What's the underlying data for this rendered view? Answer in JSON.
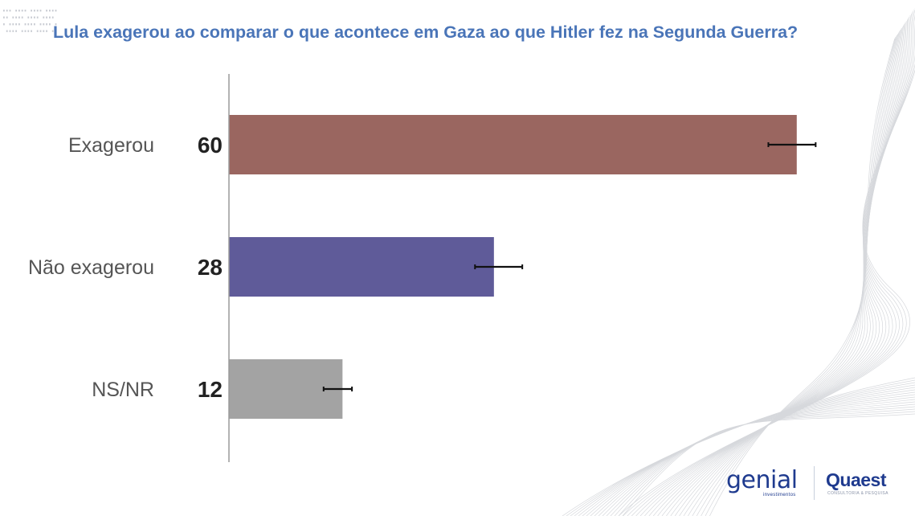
{
  "title": "Lula exagerou ao comparar o que acontece em Gaza ao que Hitler fez na Segunda Guerra?",
  "chart_data": {
    "type": "bar",
    "orientation": "horizontal",
    "title": "Lula exagerou ao comparar o que acontece em Gaza ao que Hitler fez na Segunda Guerra?",
    "categories": [
      "Exagerou",
      "Não exagerou",
      "NS/NR"
    ],
    "values": [
      60,
      28,
      12
    ],
    "error_bars": [
      [
        57,
        62
      ],
      [
        26,
        31
      ],
      [
        10,
        13
      ]
    ],
    "colors": [
      "#9a6660",
      "#5f5b99",
      "#a3a3a3"
    ],
    "xlim": [
      0,
      72
    ],
    "xlabel": "",
    "ylabel": "",
    "grid": false,
    "legend": "none"
  },
  "logos": {
    "genial": {
      "name": "genial",
      "subtitle": "investimentos"
    },
    "quaest": {
      "name": "Quaest",
      "subtitle": "CONSULTORIA & PESQUISA"
    }
  }
}
